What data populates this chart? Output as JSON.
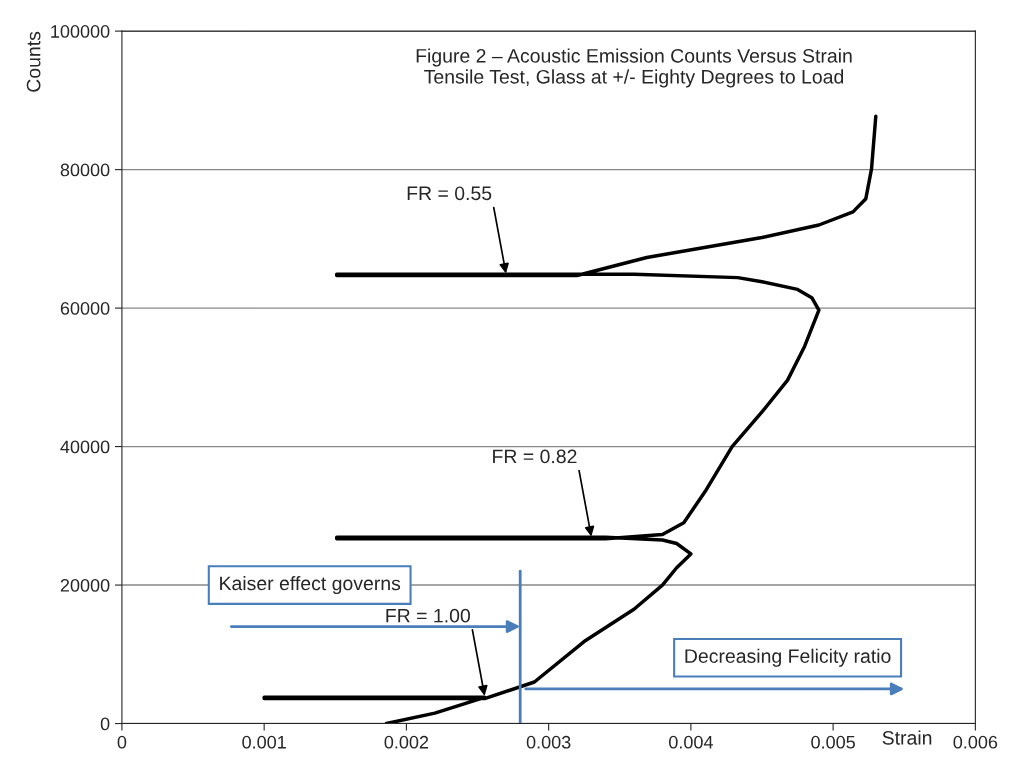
{
  "chart_data": {
    "type": "line",
    "title": "Figure 2 – Acoustic Emission Counts Versus Strain\nTensile Test, Glass at +/- Eighty Degrees to Load",
    "xlabel": "Strain",
    "ylabel": "Counts",
    "x": [
      0.00186,
      0.0022,
      0.0024,
      0.00255,
      0.001,
      0.001,
      0.00255,
      0.0029,
      0.00326,
      0.0036,
      0.0038,
      0.0039,
      0.004,
      0.0039,
      0.0038,
      0.0034,
      0.00151,
      0.00151,
      0.0034,
      0.0038,
      0.00395,
      0.0041,
      0.00429,
      0.0045,
      0.00468,
      0.0048,
      0.0049,
      0.00485,
      0.00475,
      0.0045,
      0.00433,
      0.0036,
      0.00151,
      0.00151,
      0.0032,
      0.00369,
      0.0045,
      0.0049,
      0.00514,
      0.00523,
      0.00527,
      0.0053
    ],
    "series": [
      {
        "color": "#000000",
        "values": [
          0,
          1500,
          2800,
          3800,
          3800,
          3600,
          3600,
          6000,
          12000,
          16500,
          20000,
          22500,
          24500,
          26000,
          26500,
          26900,
          26900,
          26700,
          26700,
          27300,
          29000,
          33500,
          40000,
          45000,
          49600,
          54500,
          59700,
          61500,
          62700,
          63800,
          64400,
          64900,
          64900,
          64700,
          64700,
          67300,
          70200,
          72000,
          73900,
          75800,
          80100,
          87700
        ]
      }
    ],
    "xlim": [
      0,
      0.006
    ],
    "ylim": [
      0,
      100000
    ],
    "xticks": [
      0,
      0.001,
      0.002,
      0.003,
      0.004,
      0.005,
      0.006
    ],
    "yticks": [
      0,
      20000,
      40000,
      60000,
      80000,
      100000
    ],
    "grid": "y",
    "ref_lines": [
      {
        "axis": "x",
        "value": 0.0028,
        "color": "#4a7ebb"
      }
    ],
    "annotations": [
      {
        "text": "FR = 0.55",
        "x": 0.0027,
        "y": 65000
      },
      {
        "text": "FR = 0.82",
        "x": 0.0033,
        "y": 27000
      },
      {
        "text": "FR = 1.00",
        "x": 0.00255,
        "y": 4000
      },
      "Kaiser effect governs",
      "Decreasing Felicity ratio"
    ]
  }
}
